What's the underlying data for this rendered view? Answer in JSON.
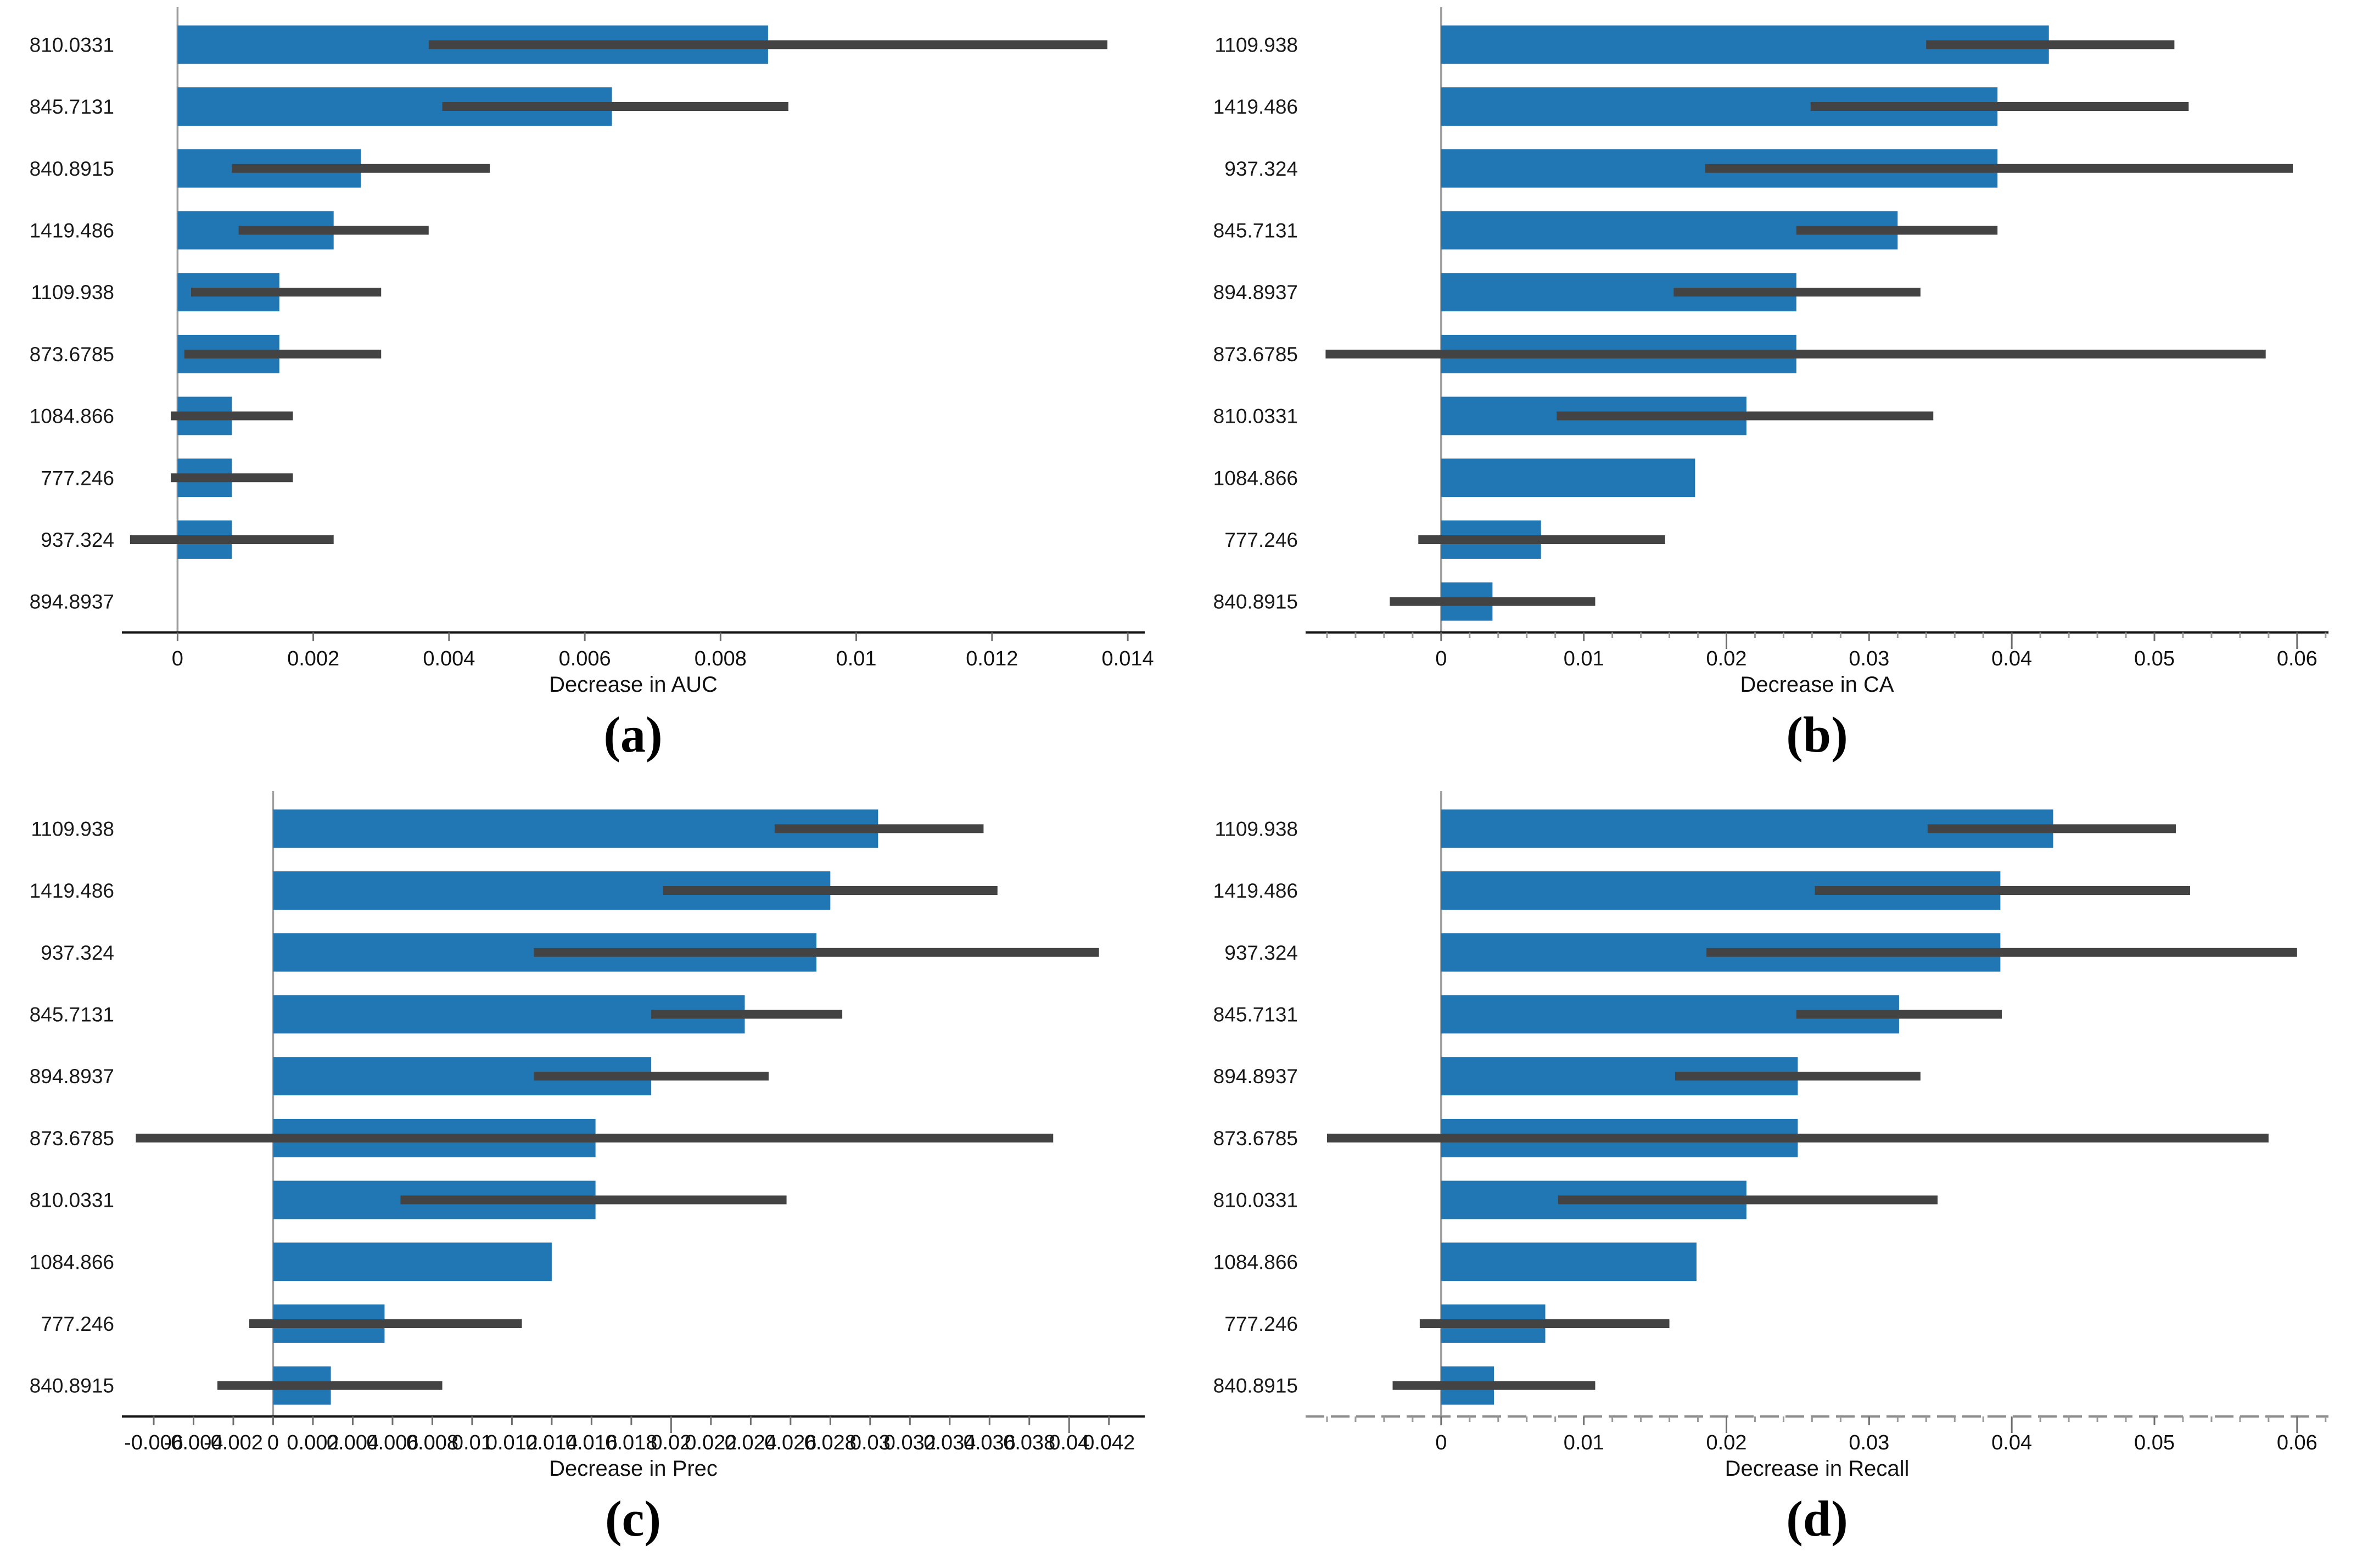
{
  "figure": {
    "bar_color": "#2077b4",
    "error_color": "#434343",
    "zero_line_color": "#9e9e9e",
    "spine_color": "#141414",
    "dashed_spine_color": "#8c8c8c",
    "major_tick_color": "#6e6e6e",
    "minor_tick_color": "#9a9a9a",
    "text_color": "#111111"
  },
  "chart_data": [
    {
      "id": "a",
      "type": "bar",
      "orientation": "horizontal",
      "caption": "(a)",
      "xlabel": "Decrease in AUC",
      "categories": [
        "810.0331",
        "845.7131",
        "840.8915",
        "1419.486",
        "1109.938",
        "873.6785",
        "1084.866",
        "777.246",
        "937.324",
        "894.8937"
      ],
      "values": [
        0.0087,
        0.0064,
        0.0027,
        0.0023,
        0.0015,
        0.0015,
        0.0008,
        0.0008,
        0.0008,
        0
      ],
      "error_low": [
        0.0037,
        0.0039,
        0.0008,
        0.0009,
        0.0002,
        0.0001,
        -0.0001,
        -0.0001,
        -0.0007,
        null
      ],
      "error_high": [
        0.0137,
        0.009,
        0.0046,
        0.0037,
        0.003,
        0.003,
        0.0017,
        0.0017,
        0.0023,
        null
      ],
      "xticks": [
        0,
        0.002,
        0.004,
        0.006,
        0.008,
        0.01,
        0.012,
        0.014
      ],
      "xtick_labels": [
        "0",
        "0.002",
        "0.004",
        "0.006",
        "0.008",
        "0.01",
        "0.012",
        "0.014"
      ],
      "xlim": [
        -0.00082,
        0.01425
      ],
      "minor_tick_step": null,
      "long_ticks": [],
      "dashed_axis": false,
      "grid": false,
      "legend": null
    },
    {
      "id": "b",
      "type": "bar",
      "orientation": "horizontal",
      "caption": "(b)",
      "xlabel": "Decrease in CA",
      "categories": [
        "1109.938",
        "1419.486",
        "937.324",
        "845.7131",
        "894.8937",
        "873.6785",
        "810.0331",
        "1084.866",
        "777.246",
        "840.8915"
      ],
      "values": [
        0.0426,
        0.039,
        0.039,
        0.032,
        0.0249,
        0.0249,
        0.0214,
        0.0178,
        0.007,
        0.0036
      ],
      "error_low": [
        0.034,
        0.0259,
        0.0185,
        0.0249,
        0.0163,
        -0.0081,
        0.0081,
        null,
        -0.0016,
        -0.0036
      ],
      "error_high": [
        0.0514,
        0.0524,
        0.0597,
        0.039,
        0.0336,
        0.0578,
        0.0345,
        null,
        0.0157,
        0.0108
      ],
      "xticks": [
        0,
        0.01,
        0.02,
        0.03,
        0.04,
        0.05,
        0.06
      ],
      "xtick_labels": [
        "0",
        "0.01",
        "0.02",
        "0.03",
        "0.04",
        "0.05",
        "0.06"
      ],
      "xlim": [
        -0.0095,
        0.0622
      ],
      "minor_tick_step": 0.002,
      "long_ticks": [
        0.02,
        0.04,
        0.06
      ],
      "dashed_axis": false,
      "grid": false,
      "legend": null
    },
    {
      "id": "c",
      "type": "bar",
      "orientation": "horizontal",
      "caption": "(c)",
      "xlabel": "Decrease in Prec",
      "categories": [
        "1109.938",
        "1419.486",
        "937.324",
        "845.7131",
        "894.8937",
        "873.6785",
        "810.0331",
        "1084.866",
        "777.246",
        "840.8915"
      ],
      "values": [
        0.0304,
        0.028,
        0.0273,
        0.0237,
        0.019,
        0.0162,
        0.0162,
        0.014,
        0.0056,
        0.0029
      ],
      "error_low": [
        0.0252,
        0.0196,
        0.0131,
        0.019,
        0.0131,
        -0.0069,
        0.0064,
        null,
        -0.0012,
        -0.0028
      ],
      "error_high": [
        0.0357,
        0.0364,
        0.0415,
        0.0286,
        0.0249,
        0.0392,
        0.0258,
        null,
        0.0125,
        0.0085
      ],
      "xticks": [
        -0.006,
        -0.004,
        -0.002,
        0,
        0.002,
        0.004,
        0.006,
        0.008,
        0.01,
        0.012,
        0.014,
        0.016,
        0.018,
        0.02,
        0.022,
        0.024,
        0.026,
        0.028,
        0.03,
        0.032,
        0.034,
        0.036,
        0.038,
        0.04,
        0.042
      ],
      "xtick_labels": [
        "-0.006",
        "-0.004",
        "-0.002",
        "0",
        "0.002",
        "0.004",
        "0.006",
        "0.008",
        "0.01",
        "0.012",
        "0.014",
        "0.016",
        "0.018",
        "0.02",
        "0.022",
        "0.024",
        "0.026",
        "0.028",
        "0.03",
        "0.032",
        "0.034",
        "0.036",
        "0.038",
        "0.04",
        "0.042"
      ],
      "xlim": [
        -0.0076,
        0.0438
      ],
      "minor_tick_step": null,
      "long_ticks": [
        0.02,
        0.04
      ],
      "dashed_axis": false,
      "grid": false,
      "legend": null
    },
    {
      "id": "d",
      "type": "bar",
      "orientation": "horizontal",
      "caption": "(d)",
      "xlabel": "Decrease in Recall",
      "categories": [
        "1109.938",
        "1419.486",
        "937.324",
        "845.7131",
        "894.8937",
        "873.6785",
        "810.0331",
        "1084.866",
        "777.246",
        "840.8915"
      ],
      "values": [
        0.0429,
        0.0392,
        0.0392,
        0.0321,
        0.025,
        0.025,
        0.0214,
        0.0179,
        0.0073,
        0.0037
      ],
      "error_low": [
        0.0341,
        0.0262,
        0.0186,
        0.0249,
        0.0164,
        -0.008,
        0.0082,
        null,
        -0.0015,
        -0.0034
      ],
      "error_high": [
        0.0515,
        0.0525,
        0.06,
        0.0393,
        0.0336,
        0.058,
        0.0348,
        null,
        0.016,
        0.0108
      ],
      "xticks": [
        0,
        0.01,
        0.02,
        0.03,
        0.04,
        0.05,
        0.06
      ],
      "xtick_labels": [
        "0",
        "0.01",
        "0.02",
        "0.03",
        "0.04",
        "0.05",
        "0.06"
      ],
      "xlim": [
        -0.0095,
        0.0622
      ],
      "minor_tick_step": 0.002,
      "long_ticks": [
        0.02,
        0.04,
        0.06
      ],
      "dashed_axis": true,
      "grid": false,
      "legend": null
    }
  ]
}
